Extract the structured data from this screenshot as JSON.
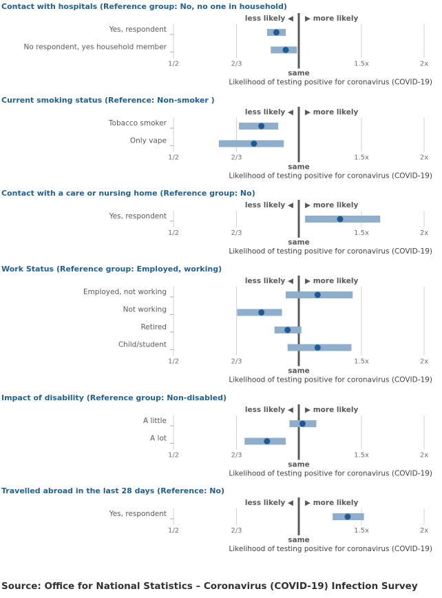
{
  "chart_data": [
    {
      "type": "forest",
      "title": "Contact with hospitals (Reference group: No, no one in household)",
      "rows": [
        {
          "label": "Yes, respondent",
          "value": 0.88,
          "lower": 0.83,
          "upper": 0.93
        },
        {
          "label": "No respondent, yes household member",
          "value": 0.93,
          "lower": 0.85,
          "upper": 0.99
        }
      ]
    },
    {
      "type": "forest",
      "title": "Current smoking status (Reference: Non-smoker )",
      "rows": [
        {
          "label": "Tobacco smoker",
          "value": 0.8,
          "lower": 0.68,
          "upper": 0.89
        },
        {
          "label": "Only vape",
          "value": 0.76,
          "lower": 0.62,
          "upper": 0.92
        }
      ]
    },
    {
      "type": "forest",
      "title": "Contact with a care or nursing home (Reference group: No)",
      "rows": [
        {
          "label": "Yes, respondent",
          "value": 1.33,
          "lower": 1.05,
          "upper": 1.65
        }
      ]
    },
    {
      "type": "forest",
      "title": "Work Status (Reference group: Employed, working)",
      "rows": [
        {
          "label": "Employed, not working",
          "value": 1.15,
          "lower": 0.93,
          "upper": 1.43
        },
        {
          "label": "Not working",
          "value": 0.8,
          "lower": 0.67,
          "upper": 0.91
        },
        {
          "label": "Retired",
          "value": 0.94,
          "lower": 0.87,
          "upper": 1.02
        },
        {
          "label": "Child/student",
          "value": 1.15,
          "lower": 0.94,
          "upper": 1.42
        }
      ]
    },
    {
      "type": "forest",
      "title": "Impact of disability (Reference group: Non-disabled)",
      "rows": [
        {
          "label": "A little",
          "value": 1.03,
          "lower": 0.95,
          "upper": 1.14
        },
        {
          "label": "A lot",
          "value": 0.83,
          "lower": 0.71,
          "upper": 0.93
        }
      ]
    },
    {
      "type": "forest",
      "title": "Travelled abroad in the last 28 days (Reference: No)",
      "rows": [
        {
          "label": "Yes, respondent",
          "value": 1.39,
          "lower": 1.27,
          "upper": 1.52
        }
      ]
    }
  ],
  "axis": {
    "ticks": [
      {
        "value": 0.5,
        "label": "1/2"
      },
      {
        "value": 0.6667,
        "label": "2/3"
      },
      {
        "value": 1.5,
        "label": "1.5x"
      },
      {
        "value": 2,
        "label": "2x"
      }
    ],
    "reference_label": "same",
    "xlabel": "Likelihood of testing positive for coronavirus (COVID-19)",
    "less_label": "less likely ◀",
    "more_label": "▶ more likely",
    "range": [
      0.5,
      2
    ]
  },
  "colors": {
    "title": "#206095",
    "bar": "#8eaecb",
    "point": "#1f5a96",
    "reference_line": "#595959",
    "grid": "#d0d0d0"
  },
  "source": "Source: Office for National Statistics – Coronavirus (COVID-19) Infection Survey"
}
